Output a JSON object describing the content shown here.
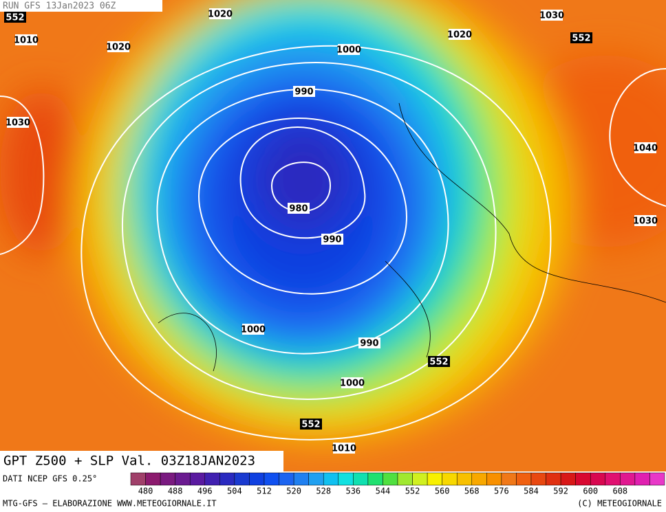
{
  "header": {
    "run": "RUN GFS 13Jan2023 06Z",
    "title": "GPT Z500 + SLP Val. 03Z18JAN2023"
  },
  "isobar_labels": [
    552,
    1020,
    1030,
    1010,
    1020,
    1000,
    1020,
    552,
    990,
    1030,
    1040,
    980,
    990,
    1030,
    1000,
    990,
    552,
    1000,
    552,
    1010
  ],
  "legend": {
    "source": "DATI NCEP GFS 0.25°",
    "labels": [
      480,
      488,
      496,
      504,
      512,
      520,
      528,
      536,
      544,
      552,
      560,
      568,
      576,
      584,
      592,
      600,
      608
    ],
    "colors": [
      "#a0406a",
      "#8c1a6e",
      "#7a1a80",
      "#6a1a90",
      "#5a1aa0",
      "#4020b0",
      "#2a2ac0",
      "#1a3ad0",
      "#1040e0",
      "#1050f0",
      "#1c64f0",
      "#2080f0",
      "#20a0f0",
      "#10c0f0",
      "#10e0e0",
      "#10e0b0",
      "#20e070",
      "#50e040",
      "#a0e830",
      "#d0f020",
      "#f8f000",
      "#f8d800",
      "#f8c000",
      "#f8a800",
      "#f89000",
      "#f07818",
      "#f06010",
      "#e84810",
      "#e03010",
      "#d81818",
      "#d80830",
      "#d80850",
      "#e01070",
      "#e01890",
      "#e020b0",
      "#e838c8"
    ]
  },
  "footer": {
    "left": "MTG-GFS — ELABORAZIONE WWW.METEOGIORNALE.IT",
    "right": "(C) METEOGIORNALE"
  }
}
